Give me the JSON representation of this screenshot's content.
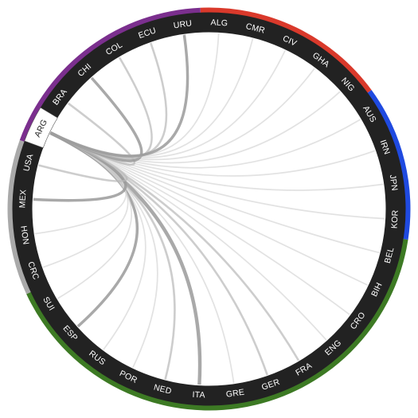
{
  "diagram": {
    "teams": [
      {
        "code": "ALG",
        "group": "africa"
      },
      {
        "code": "CMR",
        "group": "africa"
      },
      {
        "code": "CIV",
        "group": "africa"
      },
      {
        "code": "GHA",
        "group": "africa"
      },
      {
        "code": "NIG",
        "group": "africa"
      },
      {
        "code": "AUS",
        "group": "asia"
      },
      {
        "code": "IRN",
        "group": "asia"
      },
      {
        "code": "JPN",
        "group": "asia"
      },
      {
        "code": "KOR",
        "group": "asia"
      },
      {
        "code": "BEL",
        "group": "europe"
      },
      {
        "code": "BIH",
        "group": "europe"
      },
      {
        "code": "CRO",
        "group": "europe"
      },
      {
        "code": "ENG",
        "group": "europe"
      },
      {
        "code": "FRA",
        "group": "europe"
      },
      {
        "code": "GER",
        "group": "europe"
      },
      {
        "code": "GRE",
        "group": "europe"
      },
      {
        "code": "ITA",
        "group": "europe"
      },
      {
        "code": "NED",
        "group": "europe"
      },
      {
        "code": "POR",
        "group": "europe"
      },
      {
        "code": "RUS",
        "group": "europe"
      },
      {
        "code": "ESP",
        "group": "europe"
      },
      {
        "code": "SUI",
        "group": "europe"
      },
      {
        "code": "CRC",
        "group": "concacaf"
      },
      {
        "code": "HON",
        "group": "concacaf"
      },
      {
        "code": "MEX",
        "group": "concacaf"
      },
      {
        "code": "USA",
        "group": "concacaf"
      },
      {
        "code": "ARG",
        "group": "southamerica"
      },
      {
        "code": "BRA",
        "group": "southamerica"
      },
      {
        "code": "CHI",
        "group": "southamerica"
      },
      {
        "code": "COL",
        "group": "southamerica"
      },
      {
        "code": "ECU",
        "group": "southamerica"
      },
      {
        "code": "URU",
        "group": "southamerica"
      }
    ],
    "group_colors": {
      "africa": "#d9392b",
      "asia": "#1f4ae0",
      "europe": "#3d7a24",
      "concacaf": "#a9a9a9",
      "southamerica": "#7b2f8e"
    },
    "selected_team": "ARG",
    "ring_color": "#222222",
    "selected_fill": "#ffffff",
    "links": [
      {
        "from": "ARG",
        "to": "ALG",
        "strength": 1
      },
      {
        "from": "ARG",
        "to": "CMR",
        "strength": 1
      },
      {
        "from": "ARG",
        "to": "CIV",
        "strength": 1
      },
      {
        "from": "ARG",
        "to": "GHA",
        "strength": 1
      },
      {
        "from": "ARG",
        "to": "NIG",
        "strength": 1
      },
      {
        "from": "ARG",
        "to": "AUS",
        "strength": 1
      },
      {
        "from": "ARG",
        "to": "IRN",
        "strength": 1
      },
      {
        "from": "ARG",
        "to": "JPN",
        "strength": 1
      },
      {
        "from": "ARG",
        "to": "KOR",
        "strength": 1
      },
      {
        "from": "ARG",
        "to": "BEL",
        "strength": 1
      },
      {
        "from": "ARG",
        "to": "BIH",
        "strength": 1
      },
      {
        "from": "ARG",
        "to": "CRO",
        "strength": 1
      },
      {
        "from": "ARG",
        "to": "ENG",
        "strength": 1
      },
      {
        "from": "ARG",
        "to": "FRA",
        "strength": 2
      },
      {
        "from": "ARG",
        "to": "GER",
        "strength": 2
      },
      {
        "from": "ARG",
        "to": "GRE",
        "strength": 1
      },
      {
        "from": "ARG",
        "to": "ITA",
        "strength": 4
      },
      {
        "from": "ARG",
        "to": "NED",
        "strength": 2
      },
      {
        "from": "ARG",
        "to": "POR",
        "strength": 1
      },
      {
        "from": "ARG",
        "to": "RUS",
        "strength": 1
      },
      {
        "from": "ARG",
        "to": "ESP",
        "strength": 3
      },
      {
        "from": "ARG",
        "to": "SUI",
        "strength": 1
      },
      {
        "from": "ARG",
        "to": "CRC",
        "strength": 1
      },
      {
        "from": "ARG",
        "to": "HON",
        "strength": 1
      },
      {
        "from": "ARG",
        "to": "MEX",
        "strength": 3
      },
      {
        "from": "ARG",
        "to": "USA",
        "strength": 2
      },
      {
        "from": "ARG",
        "to": "BRA",
        "strength": 2
      },
      {
        "from": "ARG",
        "to": "CHI",
        "strength": 3
      },
      {
        "from": "ARG",
        "to": "COL",
        "strength": 2
      },
      {
        "from": "ARG",
        "to": "ECU",
        "strength": 2
      },
      {
        "from": "ARG",
        "to": "URU",
        "strength": 3
      }
    ]
  }
}
